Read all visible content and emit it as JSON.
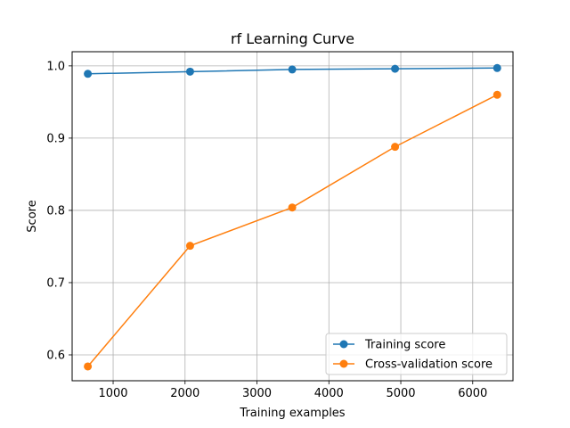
{
  "chart_data": {
    "type": "line",
    "title": "rf Learning Curve",
    "xlabel": "Training examples",
    "ylabel": "Score",
    "xlim": [
      430,
      6560
    ],
    "ylim": [
      0.5642,
      1.0196
    ],
    "xticks": [
      1000,
      2000,
      3000,
      4000,
      5000,
      6000
    ],
    "yticks": [
      0.6,
      0.7,
      0.8,
      0.9,
      1.0
    ],
    "xtick_labels": [
      "1000",
      "2000",
      "3000",
      "4000",
      "5000",
      "6000"
    ],
    "ytick_labels": [
      "0.6",
      "0.7",
      "0.8",
      "0.9",
      "1.0"
    ],
    "grid": true,
    "legend_position": "lower-right",
    "x": [
      648,
      2070,
      3490,
      4920,
      6340
    ],
    "series": [
      {
        "name": "Training score",
        "color": "#1f77b4",
        "values": [
          0.989,
          0.992,
          0.995,
          0.996,
          0.997
        ]
      },
      {
        "name": "Cross-validation score",
        "color": "#ff7f0e",
        "values": [
          0.584,
          0.751,
          0.804,
          0.888,
          0.96
        ]
      }
    ]
  }
}
